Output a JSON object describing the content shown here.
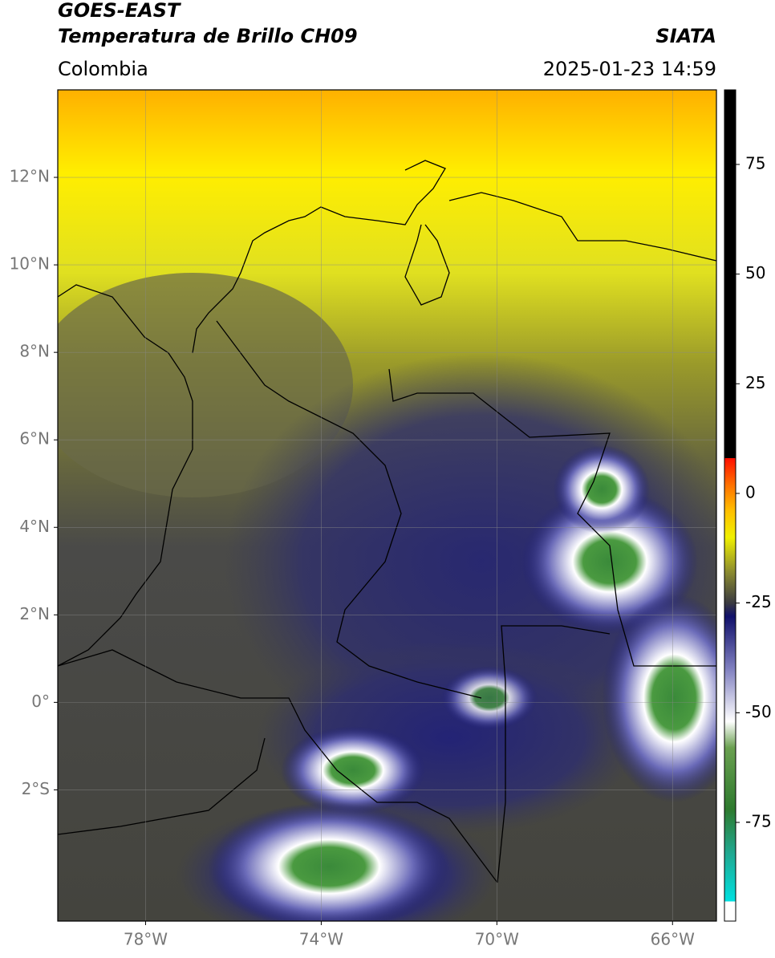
{
  "header": {
    "title": "GOES-EAST",
    "subtitle": "Temperatura de Brillo CH09",
    "source": "SIATA",
    "region": "Colombia",
    "datetime": "2025-01-23 14:59"
  },
  "map": {
    "lonlim": [
      -80,
      -65
    ],
    "latlim": [
      -5,
      14
    ],
    "grid": true,
    "lat_ticks": [
      {
        "value": 12,
        "label": "12°N"
      },
      {
        "value": 10,
        "label": "10°N"
      },
      {
        "value": 8,
        "label": "8°N"
      },
      {
        "value": 6,
        "label": "6°N"
      },
      {
        "value": 4,
        "label": "4°N"
      },
      {
        "value": 2,
        "label": "2°N"
      },
      {
        "value": 0,
        "label": "0°"
      },
      {
        "value": -2,
        "label": "2°S"
      }
    ],
    "lon_ticks": [
      {
        "value": -78,
        "label": "78°W"
      },
      {
        "value": -74,
        "label": "74°W"
      },
      {
        "value": -70,
        "label": "70°W"
      },
      {
        "value": -66,
        "label": "66°W"
      }
    ]
  },
  "colorbar": {
    "lim": [
      -97.5,
      92
    ],
    "ticks": [
      75,
      50,
      25,
      0,
      -25,
      -50,
      -75
    ],
    "stops": [
      {
        "value": -97.5,
        "color": "#ffffff"
      },
      {
        "value": -93,
        "color": "#ffffff"
      },
      {
        "value": -93,
        "color": "#00e0e0"
      },
      {
        "value": -82,
        "color": "#20a890"
      },
      {
        "value": -72,
        "color": "#2e7a2e"
      },
      {
        "value": -58,
        "color": "#6aa050"
      },
      {
        "value": -52,
        "color": "#ffffff"
      },
      {
        "value": -40,
        "color": "#8080c0"
      },
      {
        "value": -28,
        "color": "#10106a"
      },
      {
        "value": -25,
        "color": "#3a3a40"
      },
      {
        "value": -18,
        "color": "#8a8a30"
      },
      {
        "value": -10,
        "color": "#f0f000"
      },
      {
        "value": -4,
        "color": "#ffc000"
      },
      {
        "value": 2,
        "color": "#ff7000"
      },
      {
        "value": 8,
        "color": "#ff1000"
      },
      {
        "value": 8,
        "color": "#000000"
      },
      {
        "value": 92,
        "color": "#000000"
      }
    ]
  }
}
